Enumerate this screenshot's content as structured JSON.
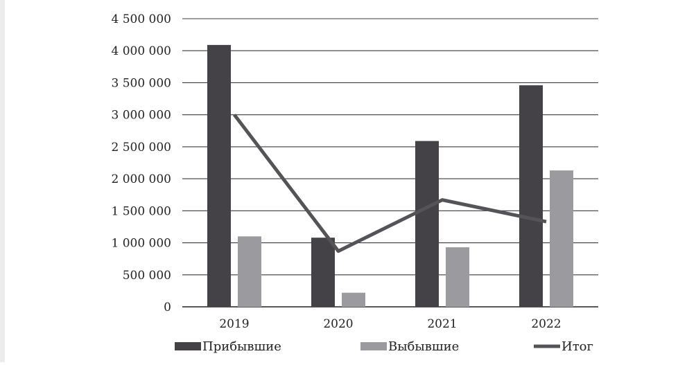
{
  "chart_data": {
    "type": "bar",
    "categories": [
      "2019",
      "2020",
      "2021",
      "2022"
    ],
    "ylim": [
      0,
      4500000
    ],
    "yticks": [
      0,
      500000,
      1000000,
      1500000,
      2000000,
      2500000,
      3000000,
      3500000,
      4000000,
      4500000
    ],
    "ytick_labels": [
      "0",
      "500 000",
      "1 000 000",
      "1 500 000",
      "2 000 000",
      "2 500 000",
      "3 000 000",
      "3 500 000",
      "4 000 000",
      "4 500 000"
    ],
    "grid": true,
    "legend_position": "bottom",
    "series": [
      {
        "name": "Прибывшие",
        "kind": "bar",
        "color": "#444147",
        "values": [
          4090000,
          1080000,
          2590000,
          3460000
        ]
      },
      {
        "name": "Выбывшие",
        "kind": "bar",
        "color": "#9b9a9e",
        "values": [
          1100000,
          220000,
          930000,
          2130000
        ]
      },
      {
        "name": "Итог",
        "kind": "line",
        "color": "#555358",
        "values": [
          3000000,
          870000,
          1670000,
          1330000
        ]
      }
    ]
  }
}
